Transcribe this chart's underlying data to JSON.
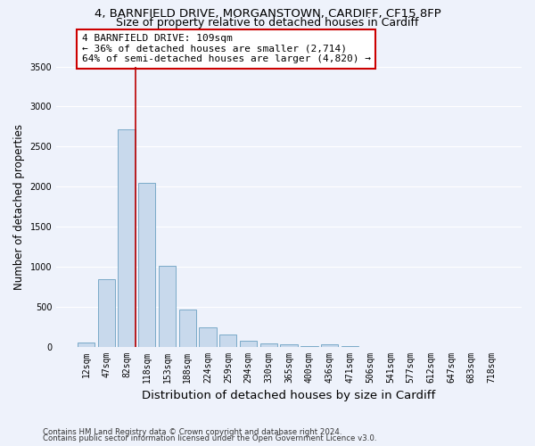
{
  "title_line1": "4, BARNFIELD DRIVE, MORGANSTOWN, CARDIFF, CF15 8FP",
  "title_line2": "Size of property relative to detached houses in Cardiff",
  "xlabel": "Distribution of detached houses by size in Cardiff",
  "ylabel": "Number of detached properties",
  "categories": [
    "12sqm",
    "47sqm",
    "82sqm",
    "118sqm",
    "153sqm",
    "188sqm",
    "224sqm",
    "259sqm",
    "294sqm",
    "330sqm",
    "365sqm",
    "400sqm",
    "436sqm",
    "471sqm",
    "506sqm",
    "541sqm",
    "577sqm",
    "612sqm",
    "647sqm",
    "683sqm",
    "718sqm"
  ],
  "values": [
    50,
    840,
    2710,
    2050,
    1010,
    460,
    235,
    155,
    75,
    40,
    25,
    5,
    25,
    5,
    0,
    0,
    0,
    0,
    0,
    0,
    0
  ],
  "bar_color": "#c8d9ec",
  "bar_edge_color": "#7aaac8",
  "vline_color": "#bb0000",
  "annotation_text": "4 BARNFIELD DRIVE: 109sqm\n← 36% of detached houses are smaller (2,714)\n64% of semi-detached houses are larger (4,820) →",
  "annotation_box_color": "#ffffff",
  "annotation_box_edge": "#cc0000",
  "footnote1": "Contains HM Land Registry data © Crown copyright and database right 2024.",
  "footnote2": "Contains public sector information licensed under the Open Government Licence v3.0.",
  "ylim": [
    0,
    3500
  ],
  "background_color": "#eef2fb",
  "grid_color": "#ffffff",
  "title_fontsize": 9.5,
  "subtitle_fontsize": 9,
  "tick_fontsize": 7,
  "ylabel_fontsize": 8.5,
  "xlabel_fontsize": 9.5,
  "footnote_fontsize": 6.2
}
